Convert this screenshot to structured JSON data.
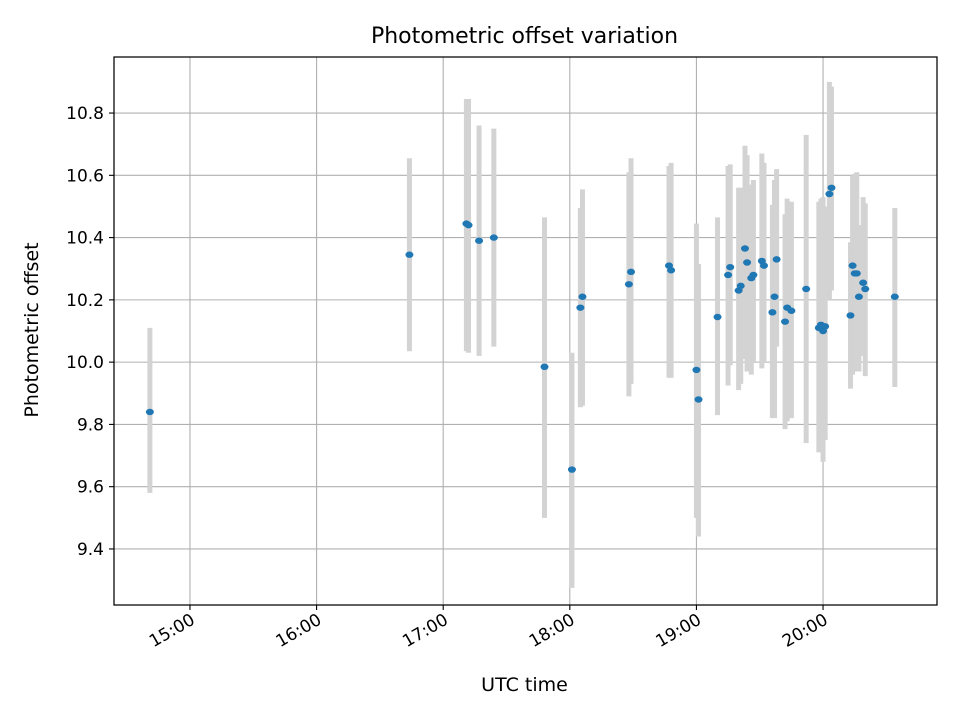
{
  "chart_data": {
    "type": "scatter",
    "title": "Photometric offset variation",
    "xlabel": "UTC time",
    "ylabel": "Photometric offset",
    "x_type": "time",
    "xlim": [
      "14:24",
      "20:54"
    ],
    "ylim": [
      9.22,
      10.98
    ],
    "x_ticks": [
      "15:00",
      "16:00",
      "17:00",
      "18:00",
      "19:00",
      "20:00"
    ],
    "y_ticks": [
      "9.4",
      "9.6",
      "9.8",
      "10.0",
      "10.2",
      "10.4",
      "10.6",
      "10.8"
    ],
    "grid": true,
    "colors": {
      "point": "#1f77b4",
      "errorbar": "#d3d3d3",
      "grid": "#b0b0b0"
    },
    "series": [
      {
        "x": [
          "14:41",
          "16:44",
          "17:11",
          "17:12",
          "17:17",
          "17:24",
          "17:48",
          "18:01",
          "18:05",
          "18:06",
          "18:28",
          "18:29",
          "18:47",
          "18:48",
          "19:00",
          "19:01",
          "19:10",
          "19:15",
          "19:16",
          "19:20",
          "19:21",
          "19:23",
          "19:24",
          "19:26",
          "19:27",
          "19:31",
          "19:32",
          "19:36",
          "19:37",
          "19:38",
          "19:42",
          "19:43",
          "19:45",
          "19:52",
          "19:58",
          "19:59",
          "20:00",
          "20:01",
          "20:03",
          "20:04",
          "20:13",
          "20:14",
          "20:15",
          "20:16",
          "20:17",
          "20:19",
          "20:20",
          "20:34"
        ],
        "y": [
          9.84,
          10.345,
          10.445,
          10.44,
          10.39,
          10.4,
          9.985,
          9.655,
          10.175,
          10.21,
          10.25,
          10.29,
          10.31,
          10.295,
          9.975,
          9.88,
          10.145,
          10.28,
          10.305,
          10.23,
          10.245,
          10.365,
          10.32,
          10.27,
          10.28,
          10.325,
          10.31,
          10.16,
          10.21,
          10.33,
          10.13,
          10.175,
          10.165,
          10.235,
          10.11,
          10.12,
          10.1,
          10.115,
          10.54,
          10.56,
          10.15,
          10.31,
          10.285,
          10.285,
          10.21,
          10.255,
          10.235,
          10.21
        ],
        "err_low": [
          9.58,
          10.035,
          10.035,
          10.03,
          10.02,
          10.05,
          9.5,
          9.275,
          9.855,
          9.86,
          9.89,
          9.93,
          9.95,
          9.95,
          9.5,
          9.44,
          9.83,
          9.925,
          9.99,
          9.91,
          9.93,
          10.01,
          9.97,
          9.96,
          10.0,
          9.98,
          10.0,
          9.82,
          9.82,
          10.05,
          9.785,
          9.81,
          9.82,
          9.74,
          9.71,
          9.72,
          9.68,
          9.75,
          10.2,
          10.23,
          9.915,
          9.96,
          9.97,
          9.98,
          9.97,
          10.02,
          9.955,
          9.92
        ],
        "err_high": [
          10.11,
          10.655,
          10.845,
          10.845,
          10.76,
          10.75,
          10.465,
          10.03,
          10.495,
          10.555,
          10.61,
          10.655,
          10.63,
          10.64,
          10.445,
          10.315,
          10.465,
          10.63,
          10.635,
          10.56,
          10.56,
          10.695,
          10.665,
          10.57,
          10.585,
          10.67,
          10.64,
          10.505,
          10.585,
          10.62,
          10.475,
          10.525,
          10.515,
          10.73,
          10.515,
          10.525,
          10.53,
          10.5,
          10.9,
          10.885,
          10.385,
          10.6,
          10.605,
          10.61,
          10.44,
          10.53,
          10.51,
          10.495
        ]
      }
    ]
  }
}
